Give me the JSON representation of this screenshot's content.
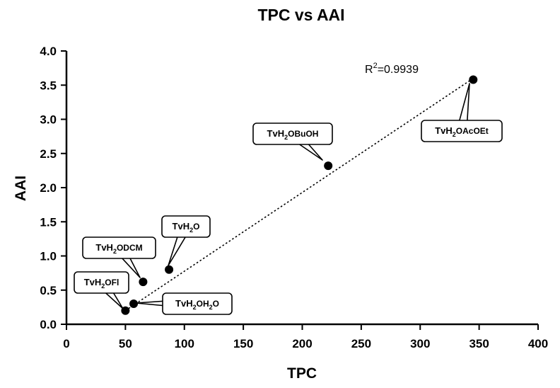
{
  "chart_data": {
    "type": "scatter",
    "title": "TPC vs AAI",
    "xlabel": "TPC",
    "ylabel": "AAI",
    "xlim": [
      0,
      400
    ],
    "ylim": [
      0,
      4.0
    ],
    "x_ticks": [
      "0",
      "50",
      "100",
      "150",
      "200",
      "250",
      "300",
      "350",
      "400"
    ],
    "y_ticks": [
      "0.0",
      "0.5",
      "1.0",
      "1.5",
      "2.0",
      "2.5",
      "3.0",
      "3.5",
      "4.0"
    ],
    "grid": false,
    "points": [
      {
        "label_base": "TvH",
        "label_sub": "2",
        "label_rest": "OFl",
        "label_sub2": "",
        "label_rest2": "",
        "x": 50,
        "y": 0.2
      },
      {
        "label_base": "TvH",
        "label_sub": "2",
        "label_rest": "OH",
        "label_sub2": "2",
        "label_rest2": "O",
        "x": 57,
        "y": 0.3
      },
      {
        "label_base": "TvH",
        "label_sub": "2",
        "label_rest": "ODCM",
        "label_sub2": "",
        "label_rest2": "",
        "x": 65,
        "y": 0.62
      },
      {
        "label_base": "TvH",
        "label_sub": "2",
        "label_rest": "O",
        "label_sub2": "",
        "label_rest2": "",
        "x": 87,
        "y": 0.8
      },
      {
        "label_base": "TvH",
        "label_sub": "2",
        "label_rest": "OBuOH",
        "label_sub2": "",
        "label_rest2": "",
        "x": 222,
        "y": 2.32
      },
      {
        "label_base": "TvH",
        "label_sub": "2",
        "label_rest": "OAcOEt",
        "label_sub2": "",
        "label_rest2": "",
        "x": 345,
        "y": 3.58
      }
    ],
    "trendline": {
      "style": "dotted",
      "x": [
        50,
        345
      ],
      "y": [
        0.2,
        3.6
      ]
    },
    "annotation": {
      "base": "R",
      "sup": "2",
      "rest": "=0.9939"
    }
  }
}
